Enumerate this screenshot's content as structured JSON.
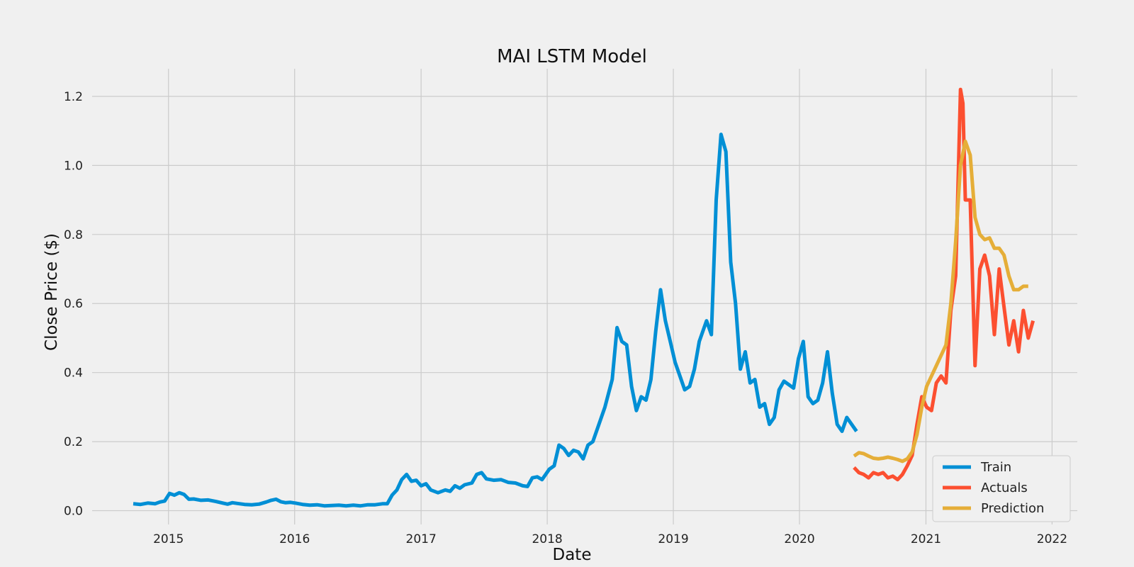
{
  "chart_data": {
    "type": "line",
    "title": "MAI LSTM Model",
    "xlabel": "Date",
    "ylabel": "Close Price ($)",
    "xlim": [
      "2014-05-25",
      "2022-03-15"
    ],
    "ylim": [
      -0.04,
      1.28
    ],
    "x_ticks": [
      "2015",
      "2016",
      "2017",
      "2018",
      "2019",
      "2020",
      "2021",
      "2022"
    ],
    "y_ticks": [
      "0.0",
      "0.2",
      "0.4",
      "0.6",
      "0.8",
      "1.0",
      "1.2"
    ],
    "grid": true,
    "legend_position": "bottom-right",
    "colors": {
      "background": "#f0f0f0",
      "grid": "#cbcbcb",
      "train": "#008fd5",
      "actuals": "#fc4f30",
      "prediction": "#e5ae38"
    },
    "series": [
      {
        "name": "Train",
        "points": [
          [
            "2014-09-21",
            0.02
          ],
          [
            "2014-10-12",
            0.018
          ],
          [
            "2014-11-02",
            0.022
          ],
          [
            "2014-11-23",
            0.02
          ],
          [
            "2014-12-07",
            0.025
          ],
          [
            "2014-12-21",
            0.028
          ],
          [
            "2015-01-04",
            0.05
          ],
          [
            "2015-01-18",
            0.045
          ],
          [
            "2015-02-01",
            0.052
          ],
          [
            "2015-02-15",
            0.047
          ],
          [
            "2015-03-01",
            0.033
          ],
          [
            "2015-03-15",
            0.034
          ],
          [
            "2015-04-05",
            0.03
          ],
          [
            "2015-04-26",
            0.031
          ],
          [
            "2015-05-17",
            0.027
          ],
          [
            "2015-06-07",
            0.022
          ],
          [
            "2015-06-21",
            0.019
          ],
          [
            "2015-07-05",
            0.023
          ],
          [
            "2015-07-19",
            0.021
          ],
          [
            "2015-08-09",
            0.018
          ],
          [
            "2015-08-30",
            0.017
          ],
          [
            "2015-09-20",
            0.019
          ],
          [
            "2015-10-11",
            0.025
          ],
          [
            "2015-10-25",
            0.03
          ],
          [
            "2015-11-08",
            0.033
          ],
          [
            "2015-11-22",
            0.026
          ],
          [
            "2015-12-06",
            0.023
          ],
          [
            "2015-12-20",
            0.024
          ],
          [
            "2016-01-03",
            0.022
          ],
          [
            "2016-01-24",
            0.018
          ],
          [
            "2016-02-14",
            0.016
          ],
          [
            "2016-03-06",
            0.017
          ],
          [
            "2016-03-27",
            0.014
          ],
          [
            "2016-04-17",
            0.015
          ],
          [
            "2016-05-08",
            0.016
          ],
          [
            "2016-05-29",
            0.014
          ],
          [
            "2016-06-19",
            0.016
          ],
          [
            "2016-07-10",
            0.014
          ],
          [
            "2016-07-31",
            0.017
          ],
          [
            "2016-08-21",
            0.017
          ],
          [
            "2016-09-11",
            0.02
          ],
          [
            "2016-09-25",
            0.02
          ],
          [
            "2016-10-09",
            0.045
          ],
          [
            "2016-10-23",
            0.06
          ],
          [
            "2016-11-06",
            0.09
          ],
          [
            "2016-11-20",
            0.105
          ],
          [
            "2016-12-04",
            0.085
          ],
          [
            "2016-12-18",
            0.088
          ],
          [
            "2017-01-01",
            0.072
          ],
          [
            "2017-01-15",
            0.078
          ],
          [
            "2017-01-29",
            0.06
          ],
          [
            "2017-02-19",
            0.052
          ],
          [
            "2017-03-12",
            0.06
          ],
          [
            "2017-03-26",
            0.056
          ],
          [
            "2017-04-09",
            0.072
          ],
          [
            "2017-04-23",
            0.065
          ],
          [
            "2017-05-07",
            0.075
          ],
          [
            "2017-05-28",
            0.08
          ],
          [
            "2017-06-11",
            0.105
          ],
          [
            "2017-06-25",
            0.11
          ],
          [
            "2017-07-09",
            0.092
          ],
          [
            "2017-07-30",
            0.088
          ],
          [
            "2017-08-20",
            0.09
          ],
          [
            "2017-09-10",
            0.082
          ],
          [
            "2017-10-01",
            0.08
          ],
          [
            "2017-10-22",
            0.072
          ],
          [
            "2017-11-05",
            0.07
          ],
          [
            "2017-11-19",
            0.095
          ],
          [
            "2017-12-03",
            0.098
          ],
          [
            "2017-12-17",
            0.09
          ],
          [
            "2018-01-07",
            0.12
          ],
          [
            "2018-01-21",
            0.13
          ],
          [
            "2018-02-04",
            0.19
          ],
          [
            "2018-02-18",
            0.18
          ],
          [
            "2018-03-04",
            0.16
          ],
          [
            "2018-03-18",
            0.175
          ],
          [
            "2018-04-01",
            0.17
          ],
          [
            "2018-04-15",
            0.15
          ],
          [
            "2018-04-29",
            0.19
          ],
          [
            "2018-05-13",
            0.2
          ],
          [
            "2018-06-03",
            0.26
          ],
          [
            "2018-06-17",
            0.3
          ],
          [
            "2018-07-08",
            0.38
          ],
          [
            "2018-07-22",
            0.53
          ],
          [
            "2018-08-05",
            0.49
          ],
          [
            "2018-08-19",
            0.48
          ],
          [
            "2018-09-02",
            0.36
          ],
          [
            "2018-09-16",
            0.29
          ],
          [
            "2018-09-30",
            0.33
          ],
          [
            "2018-10-14",
            0.32
          ],
          [
            "2018-10-28",
            0.38
          ],
          [
            "2018-11-11",
            0.52
          ],
          [
            "2018-11-25",
            0.64
          ],
          [
            "2018-12-09",
            0.55
          ],
          [
            "2018-12-23",
            0.49
          ],
          [
            "2019-01-06",
            0.43
          ],
          [
            "2019-01-20",
            0.39
          ],
          [
            "2019-02-03",
            0.35
          ],
          [
            "2019-02-17",
            0.36
          ],
          [
            "2019-03-03",
            0.41
          ],
          [
            "2019-03-17",
            0.49
          ],
          [
            "2019-04-07",
            0.55
          ],
          [
            "2019-04-21",
            0.51
          ],
          [
            "2019-05-05",
            0.9
          ],
          [
            "2019-05-19",
            1.09
          ],
          [
            "2019-06-02",
            1.04
          ],
          [
            "2019-06-16",
            0.72
          ],
          [
            "2019-06-30",
            0.6
          ],
          [
            "2019-07-14",
            0.41
          ],
          [
            "2019-07-28",
            0.46
          ],
          [
            "2019-08-11",
            0.37
          ],
          [
            "2019-08-25",
            0.38
          ],
          [
            "2019-09-08",
            0.3
          ],
          [
            "2019-09-22",
            0.31
          ],
          [
            "2019-10-06",
            0.25
          ],
          [
            "2019-10-20",
            0.27
          ],
          [
            "2019-11-03",
            0.35
          ],
          [
            "2019-11-17",
            0.375
          ],
          [
            "2019-12-01",
            0.365
          ],
          [
            "2019-12-15",
            0.355
          ],
          [
            "2019-12-29",
            0.44
          ],
          [
            "2020-01-12",
            0.49
          ],
          [
            "2020-01-26",
            0.33
          ],
          [
            "2020-02-09",
            0.31
          ],
          [
            "2020-02-23",
            0.32
          ],
          [
            "2020-03-08",
            0.37
          ],
          [
            "2020-03-22",
            0.46
          ],
          [
            "2020-04-05",
            0.34
          ],
          [
            "2020-04-19",
            0.25
          ],
          [
            "2020-05-03",
            0.23
          ],
          [
            "2020-05-17",
            0.27
          ],
          [
            "2020-05-31",
            0.25
          ],
          [
            "2020-06-14",
            0.23
          ]
        ]
      },
      {
        "name": "Actuals",
        "points": [
          [
            "2020-06-07",
            0.125
          ],
          [
            "2020-06-21",
            0.11
          ],
          [
            "2020-07-05",
            0.105
          ],
          [
            "2020-07-19",
            0.095
          ],
          [
            "2020-08-02",
            0.11
          ],
          [
            "2020-08-16",
            0.105
          ],
          [
            "2020-08-30",
            0.11
          ],
          [
            "2020-09-13",
            0.095
          ],
          [
            "2020-09-27",
            0.1
          ],
          [
            "2020-10-11",
            0.09
          ],
          [
            "2020-10-25",
            0.105
          ],
          [
            "2020-11-08",
            0.13
          ],
          [
            "2020-11-22",
            0.16
          ],
          [
            "2020-12-06",
            0.25
          ],
          [
            "2020-12-20",
            0.33
          ],
          [
            "2021-01-03",
            0.3
          ],
          [
            "2021-01-17",
            0.29
          ],
          [
            "2021-01-31",
            0.37
          ],
          [
            "2021-02-14",
            0.39
          ],
          [
            "2021-02-28",
            0.37
          ],
          [
            "2021-03-14",
            0.58
          ],
          [
            "2021-03-28",
            0.68
          ],
          [
            "2021-04-11",
            1.22
          ],
          [
            "2021-04-18",
            1.18
          ],
          [
            "2021-04-25",
            0.9
          ],
          [
            "2021-05-09",
            0.9
          ],
          [
            "2021-05-23",
            0.42
          ],
          [
            "2021-06-06",
            0.7
          ],
          [
            "2021-06-20",
            0.74
          ],
          [
            "2021-07-04",
            0.68
          ],
          [
            "2021-07-18",
            0.51
          ],
          [
            "2021-08-01",
            0.7
          ],
          [
            "2021-08-15",
            0.59
          ],
          [
            "2021-08-29",
            0.48
          ],
          [
            "2021-09-12",
            0.55
          ],
          [
            "2021-09-26",
            0.46
          ],
          [
            "2021-10-10",
            0.58
          ],
          [
            "2021-10-24",
            0.5
          ],
          [
            "2021-11-07",
            0.55
          ]
        ]
      },
      {
        "name": "Prediction",
        "points": [
          [
            "2020-06-07",
            0.158
          ],
          [
            "2020-06-21",
            0.168
          ],
          [
            "2020-07-05",
            0.165
          ],
          [
            "2020-07-19",
            0.158
          ],
          [
            "2020-08-02",
            0.152
          ],
          [
            "2020-08-16",
            0.15
          ],
          [
            "2020-08-30",
            0.152
          ],
          [
            "2020-09-13",
            0.155
          ],
          [
            "2020-09-27",
            0.152
          ],
          [
            "2020-10-11",
            0.148
          ],
          [
            "2020-10-25",
            0.143
          ],
          [
            "2020-11-08",
            0.15
          ],
          [
            "2020-11-22",
            0.17
          ],
          [
            "2020-12-06",
            0.22
          ],
          [
            "2020-12-20",
            0.3
          ],
          [
            "2021-01-03",
            0.36
          ],
          [
            "2021-01-17",
            0.39
          ],
          [
            "2021-01-31",
            0.42
          ],
          [
            "2021-02-14",
            0.45
          ],
          [
            "2021-02-28",
            0.48
          ],
          [
            "2021-03-14",
            0.6
          ],
          [
            "2021-03-28",
            0.78
          ],
          [
            "2021-04-11",
            1.0
          ],
          [
            "2021-04-25",
            1.07
          ],
          [
            "2021-05-09",
            1.03
          ],
          [
            "2021-05-23",
            0.85
          ],
          [
            "2021-06-06",
            0.8
          ],
          [
            "2021-06-20",
            0.785
          ],
          [
            "2021-07-04",
            0.79
          ],
          [
            "2021-07-18",
            0.76
          ],
          [
            "2021-08-01",
            0.76
          ],
          [
            "2021-08-15",
            0.74
          ],
          [
            "2021-08-29",
            0.68
          ],
          [
            "2021-09-12",
            0.64
          ],
          [
            "2021-09-26",
            0.64
          ],
          [
            "2021-10-10",
            0.65
          ],
          [
            "2021-10-24",
            0.65
          ]
        ]
      }
    ]
  }
}
